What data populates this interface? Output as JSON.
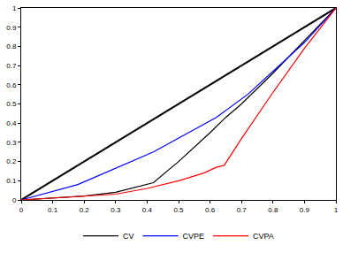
{
  "chart_data": {
    "type": "line",
    "xlim": [
      0,
      1
    ],
    "xticks": [
      0,
      0.1,
      0.2,
      0.3,
      0.4,
      0.5,
      0.6,
      0.7,
      0.8,
      0.9,
      1
    ],
    "ylim": [
      0,
      1
    ],
    "yticks": [
      0,
      0.1,
      0.2,
      0.3,
      0.4,
      0.5,
      0.6,
      0.7,
      0.8,
      0.9,
      1
    ],
    "grid": false,
    "legend": "bottom",
    "series": [
      {
        "color": "#000000",
        "line_style": "solid",
        "x": [
          0,
          1
        ],
        "values": [
          0,
          1
        ]
      },
      {
        "name": "CV",
        "color": "#000000",
        "line_style": "solid",
        "x": [
          0,
          0.1,
          0.2,
          0.3,
          0.35,
          0.42,
          0.5,
          0.6,
          0.65,
          0.7,
          0.8,
          0.9,
          1
        ],
        "values": [
          0,
          0.01,
          0.02,
          0.04,
          0.06,
          0.09,
          0.2,
          0.35,
          0.43,
          0.5,
          0.66,
          0.83,
          1
        ]
      },
      {
        "name": "CVPE",
        "color": "#0000ff",
        "line_style": "solid",
        "x": [
          0,
          0.18,
          0.42,
          0.62,
          0.72,
          0.8,
          0.9,
          1
        ],
        "values": [
          0,
          0.08,
          0.25,
          0.43,
          0.55,
          0.67,
          0.82,
          1
        ]
      },
      {
        "name": "CVPA",
        "color": "#ff0000",
        "line_style": "solid",
        "x": [
          0,
          0.1,
          0.2,
          0.3,
          0.4,
          0.5,
          0.58,
          0.62,
          0.645,
          0.7,
          0.8,
          0.9,
          1
        ],
        "values": [
          0,
          0.01,
          0.02,
          0.03,
          0.06,
          0.1,
          0.14,
          0.17,
          0.18,
          0.32,
          0.56,
          0.79,
          1
        ]
      }
    ]
  }
}
